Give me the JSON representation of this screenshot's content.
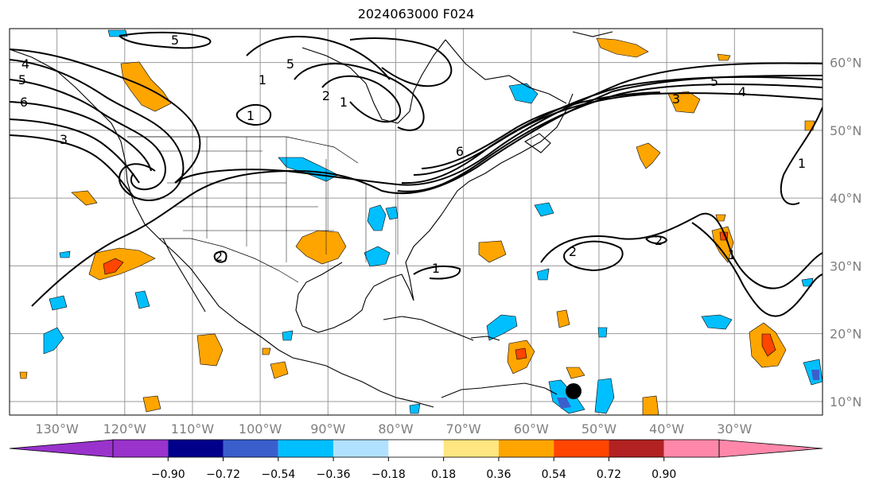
{
  "title": "2024063000 F024",
  "map": {
    "lon_ticks": [
      "130°W",
      "120°W",
      "110°W",
      "100°W",
      "90°W",
      "80°W",
      "70°W",
      "60°W",
      "50°W",
      "40°W",
      "30°W"
    ],
    "lat_ticks": [
      "60°N",
      "50°N",
      "40°N",
      "30°N",
      "20°N",
      "10°N"
    ],
    "lon_range": [
      -137,
      -17
    ],
    "lat_range": [
      8,
      65
    ],
    "contour_labels": [
      "5",
      "5",
      "4",
      "5",
      "6",
      "3",
      "1",
      "1",
      "2",
      "1",
      "6",
      "5",
      "4",
      "3",
      "2",
      "2",
      "1",
      "1",
      "2",
      "1"
    ],
    "marker": "storm-center-dot"
  },
  "colorbar": {
    "ticks": [
      "−0.90",
      "−0.72",
      "−0.54",
      "−0.36",
      "−0.18",
      "0.18",
      "0.36",
      "0.54",
      "0.72",
      "0.90"
    ],
    "colors": [
      "#9933cc",
      "#9933cc",
      "#00008b",
      "#3a5fcd",
      "#00bfff",
      "#b0e2ff",
      "#ffffff",
      "#ffe680",
      "#ffa500",
      "#ff4500",
      "#b22222",
      "#ff88aa",
      "#ff88aa"
    ],
    "extend": "both"
  }
}
